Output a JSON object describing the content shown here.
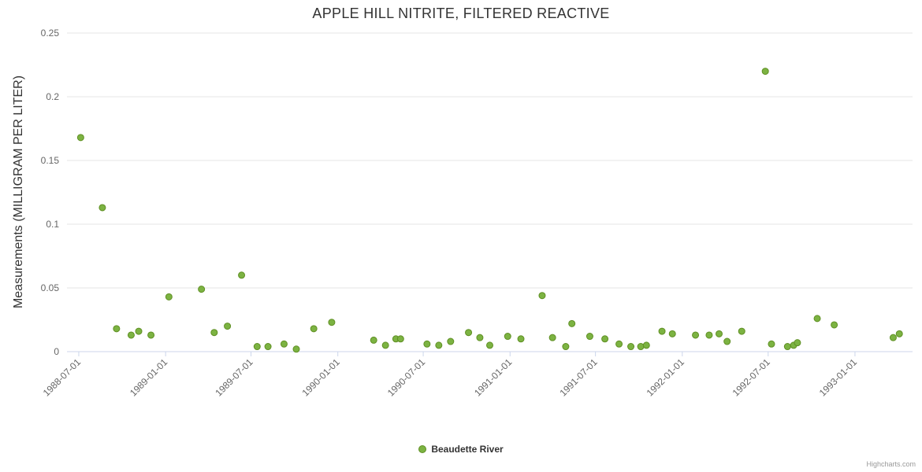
{
  "chart": {
    "title": "APPLE HILL NITRITE, FILTERED REACTIVE",
    "y_axis_title": "Measurements (MILLIGRAM PER LITER)",
    "legend_label": "Beaudette River",
    "credits": "Highcharts.com",
    "colors": {
      "point_fill": "#7cb342",
      "point_stroke": "#5f8f23",
      "grid": "#e6e6e6",
      "axis_line": "#ccd6eb",
      "tick_label": "#666666",
      "title": "#333333"
    }
  },
  "chart_data": {
    "type": "scatter",
    "title": "APPLE HILL NITRITE, FILTERED REACTIVE",
    "xlabel": "",
    "ylabel": "Measurements (MILLIGRAM PER LITER)",
    "grid": true,
    "legend_position": "bottom-center",
    "x_range": [
      "1988-06-06",
      "1993-05-03"
    ],
    "ylim": [
      0,
      0.25
    ],
    "x_ticks": [
      "1988-07-01",
      "1989-01-01",
      "1989-07-01",
      "1990-01-01",
      "1990-07-01",
      "1991-01-01",
      "1991-07-01",
      "1992-01-01",
      "1992-07-01",
      "1993-01-01"
    ],
    "y_ticks": [
      0,
      0.05,
      0.1,
      0.15,
      0.2,
      0.25
    ],
    "y_tick_labels": [
      "0",
      "0.05",
      "0.1",
      "0.15",
      "0.2",
      "0.25"
    ],
    "series": [
      {
        "name": "Beaudette River",
        "points": [
          {
            "date": "1988-07-05",
            "value": 0.168
          },
          {
            "date": "1988-08-20",
            "value": 0.113
          },
          {
            "date": "1988-09-19",
            "value": 0.018
          },
          {
            "date": "1988-10-20",
            "value": 0.013
          },
          {
            "date": "1988-11-05",
            "value": 0.016
          },
          {
            "date": "1988-12-01",
            "value": 0.013
          },
          {
            "date": "1989-01-08",
            "value": 0.043
          },
          {
            "date": "1989-03-18",
            "value": 0.049
          },
          {
            "date": "1989-04-14",
            "value": 0.015
          },
          {
            "date": "1989-05-12",
            "value": 0.02
          },
          {
            "date": "1989-06-11",
            "value": 0.06
          },
          {
            "date": "1989-07-14",
            "value": 0.004
          },
          {
            "date": "1989-08-06",
            "value": 0.004
          },
          {
            "date": "1989-09-09",
            "value": 0.006
          },
          {
            "date": "1989-10-05",
            "value": 0.002
          },
          {
            "date": "1989-11-11",
            "value": 0.018
          },
          {
            "date": "1989-12-19",
            "value": 0.023
          },
          {
            "date": "1990-03-18",
            "value": 0.009
          },
          {
            "date": "1990-04-12",
            "value": 0.005
          },
          {
            "date": "1990-05-04",
            "value": 0.01
          },
          {
            "date": "1990-05-14",
            "value": 0.01
          },
          {
            "date": "1990-07-09",
            "value": 0.006
          },
          {
            "date": "1990-08-03",
            "value": 0.005
          },
          {
            "date": "1990-08-28",
            "value": 0.008
          },
          {
            "date": "1990-10-05",
            "value": 0.015
          },
          {
            "date": "1990-10-29",
            "value": 0.011
          },
          {
            "date": "1990-11-19",
            "value": 0.005
          },
          {
            "date": "1990-12-27",
            "value": 0.012
          },
          {
            "date": "1991-01-24",
            "value": 0.01
          },
          {
            "date": "1991-03-10",
            "value": 0.044
          },
          {
            "date": "1991-04-01",
            "value": 0.011
          },
          {
            "date": "1991-04-29",
            "value": 0.004
          },
          {
            "date": "1991-05-12",
            "value": 0.022
          },
          {
            "date": "1991-06-19",
            "value": 0.012
          },
          {
            "date": "1991-07-21",
            "value": 0.01
          },
          {
            "date": "1991-08-20",
            "value": 0.006
          },
          {
            "date": "1991-09-14",
            "value": 0.004
          },
          {
            "date": "1991-10-05",
            "value": 0.004
          },
          {
            "date": "1991-10-17",
            "value": 0.005
          },
          {
            "date": "1991-11-19",
            "value": 0.016
          },
          {
            "date": "1991-12-11",
            "value": 0.014
          },
          {
            "date": "1992-01-29",
            "value": 0.013
          },
          {
            "date": "1992-02-27",
            "value": 0.013
          },
          {
            "date": "1992-03-19",
            "value": 0.014
          },
          {
            "date": "1992-04-05",
            "value": 0.008
          },
          {
            "date": "1992-05-06",
            "value": 0.016
          },
          {
            "date": "1992-06-25",
            "value": 0.22
          },
          {
            "date": "1992-07-08",
            "value": 0.006
          },
          {
            "date": "1992-08-11",
            "value": 0.004
          },
          {
            "date": "1992-08-24",
            "value": 0.005
          },
          {
            "date": "1992-09-01",
            "value": 0.007
          },
          {
            "date": "1992-10-13",
            "value": 0.026
          },
          {
            "date": "1992-11-18",
            "value": 0.021
          },
          {
            "date": "1993-03-23",
            "value": 0.011
          },
          {
            "date": "1993-04-05",
            "value": 0.014
          }
        ]
      }
    ]
  }
}
